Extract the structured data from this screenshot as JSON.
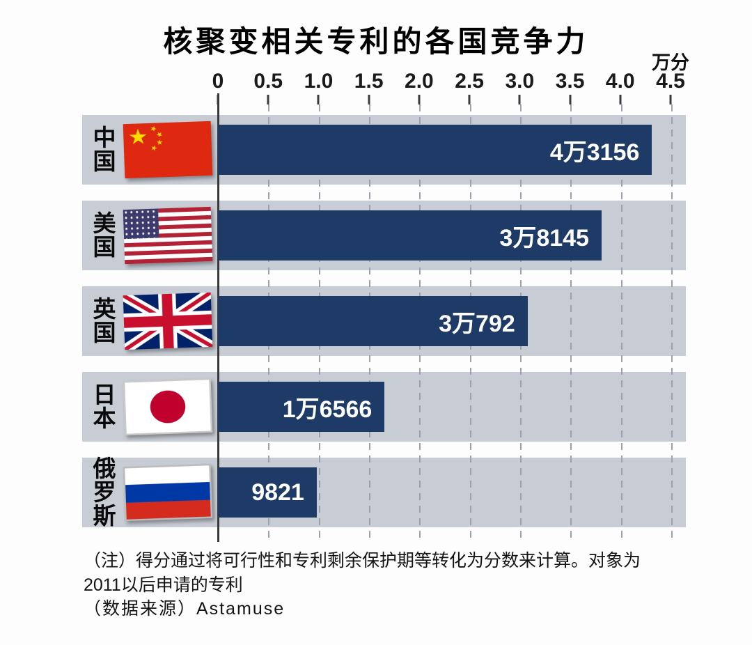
{
  "chart_data": {
    "type": "bar",
    "orientation": "horizontal",
    "title": "核聚变相关专利的各国竞争力",
    "unit_label": "万分",
    "xlim": [
      0,
      4.5
    ],
    "x_ticks": [
      "0",
      "0.5",
      "1.0",
      "1.5",
      "2.0",
      "2.5",
      "3.0",
      "3.5",
      "4.0",
      "4.5"
    ],
    "grid": "dashed-vertical",
    "legend": "none",
    "bar_color": "#1e3a66",
    "band_color": "#c8cdd5",
    "rows": [
      {
        "country": "中国",
        "name_stacked": "中\n国",
        "flag": "china-flag",
        "value": 4.3156,
        "score": 43156,
        "value_label": "4万3156"
      },
      {
        "country": "美国",
        "name_stacked": "美\n国",
        "flag": "usa-flag",
        "value": 3.8145,
        "score": 38145,
        "value_label": "3万8145"
      },
      {
        "country": "英国",
        "name_stacked": "英\n国",
        "flag": "uk-flag",
        "value": 3.0792,
        "score": 30792,
        "value_label": "3万792"
      },
      {
        "country": "日本",
        "name_stacked": "日\n本",
        "flag": "japan-flag",
        "value": 1.6566,
        "score": 16566,
        "value_label": "1万6566"
      },
      {
        "country": "俄罗斯",
        "name_stacked": "俄\n罗\n斯",
        "flag": "russia-flag",
        "value": 0.9821,
        "score": 9821,
        "value_label": "9821"
      }
    ]
  },
  "notes": {
    "line1": "（注）得分通过将可行性和专利剩余保护期等转化为分数来计算。对象为",
    "line2": "2011以后申请的专利",
    "source": "（数据来源）Astamuse"
  }
}
